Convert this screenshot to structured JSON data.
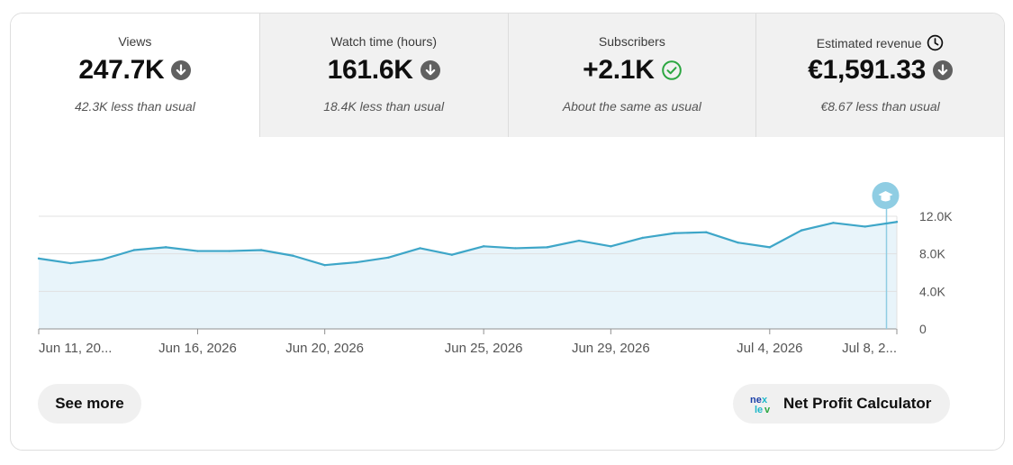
{
  "tabs": [
    {
      "title": "Views",
      "value": "247.7K",
      "trend_icon": "arrow-down-circle-icon",
      "subtitle": "42.3K less than usual"
    },
    {
      "title": "Watch time (hours)",
      "value": "161.6K",
      "trend_icon": "arrow-down-circle-icon",
      "subtitle": "18.4K less than usual"
    },
    {
      "title": "Subscribers",
      "value": "+2.1K",
      "trend_icon": "check-circle-icon",
      "subtitle": "About the same as usual"
    },
    {
      "title": "Estimated revenue",
      "title_icon": "clock-icon",
      "value": "€1,591.33",
      "trend_icon": "arrow-down-circle-icon",
      "subtitle": "€8.67 less than usual"
    }
  ],
  "colors": {
    "line": "#3ea6c8",
    "area": "#e8f4fa",
    "down_icon": "#606060",
    "check_icon": "#2ba640",
    "marker": "#8fcde3"
  },
  "chart_data": {
    "type": "area",
    "x": [
      "Jun 11, 2026",
      "Jun 12, 2026",
      "Jun 13, 2026",
      "Jun 14, 2026",
      "Jun 15, 2026",
      "Jun 16, 2026",
      "Jun 17, 2026",
      "Jun 18, 2026",
      "Jun 19, 2026",
      "Jun 20, 2026",
      "Jun 21, 2026",
      "Jun 22, 2026",
      "Jun 23, 2026",
      "Jun 24, 2026",
      "Jun 25, 2026",
      "Jun 26, 2026",
      "Jun 27, 2026",
      "Jun 28, 2026",
      "Jun 29, 2026",
      "Jun 30, 2026",
      "Jul 1, 2026",
      "Jul 2, 2026",
      "Jul 3, 2026",
      "Jul 4, 2026",
      "Jul 5, 2026",
      "Jul 6, 2026",
      "Jul 7, 2026",
      "Jul 8, 2026"
    ],
    "values": [
      7500,
      7000,
      7400,
      8400,
      8700,
      8300,
      8300,
      8400,
      7800,
      6800,
      7100,
      7600,
      8600,
      7900,
      8800,
      8600,
      8700,
      9400,
      8800,
      9700,
      10200,
      10300,
      9200,
      8700,
      10500,
      11300,
      10900,
      11400
    ],
    "x_tick_labels": [
      "Jun 11, 20...",
      "Jun 16, 2026",
      "Jun 20, 2026",
      "Jun 25, 2026",
      "Jun 29, 2026",
      "Jul 4, 2026",
      "Jul 8, 2..."
    ],
    "x_tick_dates": [
      "Jun 11, 2026",
      "Jun 16, 2026",
      "Jun 20, 2026",
      "Jun 25, 2026",
      "Jun 29, 2026",
      "Jul 4, 2026",
      "Jul 8, 2026"
    ],
    "y_ticks": [
      0,
      4000,
      8000,
      12000
    ],
    "y_tick_labels": [
      "0",
      "4.0K",
      "8.0K",
      "12.0K"
    ],
    "ylim": [
      0,
      12000
    ],
    "grid": true,
    "marker_date": "Jul 8, 2026",
    "marker_icon": "graduation-cap-icon"
  },
  "buttons": {
    "see_more": "See more",
    "net_profit": "Net Profit Calculator",
    "net_profit_icon": "nexlev-logo-icon"
  }
}
